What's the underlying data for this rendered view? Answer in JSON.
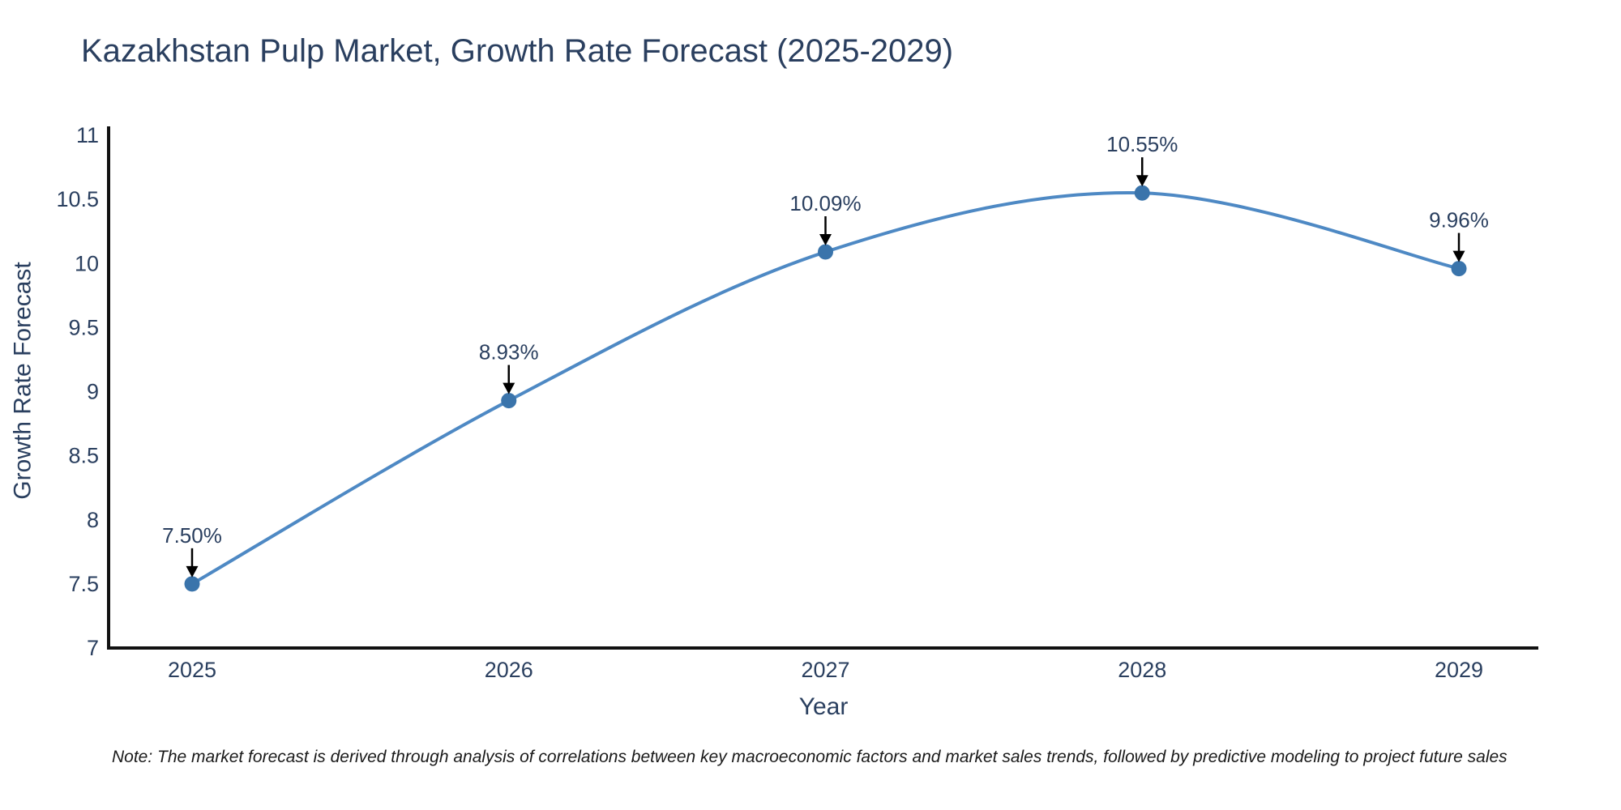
{
  "title": "Kazakhstan Pulp Market, Growth Rate Forecast (2025-2029)",
  "note": "Note: The market forecast is derived through analysis of correlations between key macroeconomic factors and market sales trends, followed by predictive modeling to project future sales",
  "chart_data": {
    "type": "line",
    "title": "Kazakhstan Pulp Market, Growth Rate Forecast (2025-2029)",
    "xlabel": "Year",
    "ylabel": "Growth Rate Forecast",
    "categories": [
      "2025",
      "2026",
      "2027",
      "2028",
      "2029"
    ],
    "values": [
      7.5,
      8.93,
      10.09,
      10.55,
      9.96
    ],
    "point_labels": [
      "7.50%",
      "8.93%",
      "10.09%",
      "10.55%",
      "9.96%"
    ],
    "ylim": [
      7,
      11
    ],
    "ytick_step": 0.5,
    "grid": false,
    "legend_position": "none",
    "line_shape": "spline",
    "annotation_style": "black-arrow-pointing-down-to-point",
    "colors": {
      "line": "#4e89c4",
      "marker": "#3a74ab",
      "axis_line": "#111111",
      "text": "#2a3f5f",
      "annotation_arrow": "#000000"
    }
  }
}
